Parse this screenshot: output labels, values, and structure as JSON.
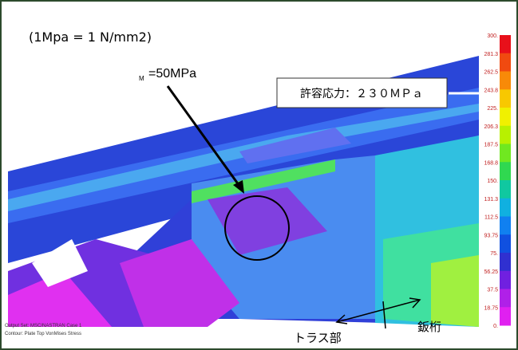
{
  "header": {
    "unit_note": "(1Mpa = 1 N/mm2)",
    "sigma_sub": "M",
    "sigma_value": "=50MPa"
  },
  "callout": "許容応力：２３０ＭＰａ",
  "labels": {
    "truss": "トラス部",
    "girder": "鈑桁"
  },
  "legend": {
    "labels": [
      "300.",
      "281.3",
      "262.5",
      "243.8",
      "225.",
      "206.3",
      "187.5",
      "168.8",
      "150.",
      "131.3",
      "112.5",
      "93.75",
      "75.",
      "56.25",
      "37.5",
      "18.75",
      "0."
    ],
    "colors": [
      "#e8101a",
      "#f04a10",
      "#f88a08",
      "#f8c800",
      "#f0f000",
      "#b8f000",
      "#70e820",
      "#30d850",
      "#10c8a0",
      "#10b0e0",
      "#1080f0",
      "#1050e0",
      "#3030d0",
      "#7020e0",
      "#b020e8",
      "#e020f0"
    ]
  },
  "footer": {
    "line1": "Output Set: MSC/NASTRAN Case 1",
    "line2": "Contour: Plate Top VonMises Stress"
  }
}
